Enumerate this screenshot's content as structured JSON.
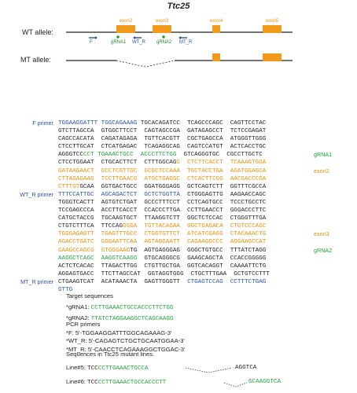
{
  "title": "Ttc25",
  "colors": {
    "exon": "#f19a1c",
    "primer": "#2a4fa8",
    "grna": "#1fa23a",
    "text": "#222222"
  },
  "diagram": {
    "wt_label": "WT allele:",
    "mt_label": "MT allele:",
    "exons": [
      "exon2",
      "exon3",
      "exon4",
      "exon5"
    ],
    "primers": [
      "F",
      "WT_R",
      "MT_R"
    ],
    "grnas": [
      "gRNA1",
      "gRNA2"
    ]
  },
  "sequence_rows": [
    {
      "label": "F primer",
      "label_color": "b",
      "segments": [
        [
          "TGGAAGGATTT TGGCAGAAAG",
          "b"
        ],
        [
          " TGCACAGATCC  TCAGCCCAGC  CAGTTCCTAC",
          "k"
        ]
      ]
    },
    {
      "label": "",
      "segments": [
        [
          "GTCTTAGCCA  GTGGCTTCCT  CAGTAGCCGA  GATAGAGCCT  TCTCCGAGAT",
          "k"
        ]
      ]
    },
    {
      "label": "",
      "segments": [
        [
          "CAGCCACATA  CAGATAGAGA  TGTTCACGTT  CGCTGAGCCA  ATGGGTTGGG",
          "k"
        ]
      ]
    },
    {
      "label": "",
      "segments": [
        [
          "CTCCTTGCAT  CTCATGAGAC  TCAGAGGCAG  CAGTCCATGT  ACTCACCTGC",
          "k"
        ]
      ]
    },
    {
      "label": "",
      "side": "gRNA1",
      "side_color": "g",
      "segments": [
        [
          "AGGGTCC",
          "k"
        ],
        [
          "CCT TGAAACTGCC  ACCCTTCTGG",
          "g"
        ],
        [
          "  GTCAGGGTGC  CGCCTTGCTC",
          "k"
        ]
      ]
    },
    {
      "label": "",
      "segments": [
        [
          "CTCCTGGAAT  CTGCACTTCT  CTTTGGCAG",
          "k"
        ],
        [
          "G  CTCTTCACCT  TCAAAGTGGA",
          "o"
        ]
      ]
    },
    {
      "label": "",
      "side": "exon2",
      "side_color": "o",
      "segments": [
        [
          "GATAAGAACT  GCCTCGTTGC  GCGCTCCAAA  TGCTACCTGA  AGATGGAGCA",
          "o"
        ]
      ]
    },
    {
      "label": "",
      "segments": [
        [
          "CTTAGAGAAG  TCCTTGAACG  ATGCTGAGGC  CTCACTTCGG  AACGACCCGA",
          "o"
        ]
      ]
    },
    {
      "label": "",
      "segments": [
        [
          "CTTTGT",
          "o"
        ],
        [
          "GCAA  GGTGACTGCC  GGATGGGAGG  GCTCAGTCTT  GGTTTCGCCA",
          "k"
        ]
      ]
    },
    {
      "label": "WT_R primer",
      "label_color": "b",
      "segments": [
        [
          "TTTCCATTGC  AGCAGACTCT  GCTCTGGTTA",
          "b"
        ],
        [
          "  CTGGGAGTTG  AAGAACCAGC",
          "k"
        ]
      ]
    },
    {
      "label": "",
      "segments": [
        [
          "TGGGTCACTT  AGTGTCTGAT  GCCCTTTCCT  CCTCAGTGCC  TCCCTGCCTC",
          "k"
        ]
      ]
    },
    {
      "label": "",
      "segments": [
        [
          "TCCGAGCCCA  ACCTTCACCT  CCACCCTTGA  CCTTGAACCT  GGGACCCTTC",
          "k"
        ]
      ]
    },
    {
      "label": "",
      "segments": [
        [
          "CATGCTACCG  TGCAAGTGCT  TTAAGGTCTT  GGCTCTCCAC  CTGGGTTTGA",
          "k"
        ]
      ]
    },
    {
      "label": "",
      "segments": [
        [
          "CTGTCTTTCA  TTCCAG",
          "k"
        ],
        [
          "GGGA  TGTTACAGAA  GGCTGAGACA  CTGTCCCAGC",
          "o"
        ]
      ]
    },
    {
      "label": "",
      "side": "exon3",
      "side_color": "o",
      "segments": [
        [
          "TGGGAGAGTT  TGAGTTTGCC  CTGGTGTTCT  ATCATCGAGG  CTACAAACTG",
          "o"
        ]
      ]
    },
    {
      "label": "",
      "segments": [
        [
          "AGACCTGATC  GGGAATTCAA  AGTAGGAATT  CAGAAGGCCC  AGGAAGCCAT",
          "o"
        ]
      ]
    },
    {
      "label": "",
      "side": "gRNA2",
      "side_color": "g",
      "segments": [
        [
          "GAAGCCAGCG  GTGGGAAG",
          "o"
        ],
        [
          "TG  AGTGAGGGAG  GGGCTGTGCC  TTTATCTAGG",
          "k"
        ]
      ]
    },
    {
      "label": "",
      "segments": [
        [
          "AAGGCTCAGC  AAGGTCAAGG",
          "g"
        ],
        [
          "  GTGCAGGGCG  GAAGCAGCTA  CCACCGGGGG",
          "k"
        ]
      ]
    },
    {
      "label": "",
      "segments": [
        [
          "ACTCTCACAC  TTAGACTTGG  CTGTTGCTGA  GGTCACAGGT  CAAAATTCTG",
          "k"
        ]
      ]
    },
    {
      "label": "",
      "segments": [
        [
          "AGGAGTGACC  TTCTTAGCCAT  GGTAGGTGGG  CTGCTTTGAA  GCTGTCCTTT",
          "k"
        ]
      ]
    },
    {
      "label": "MT_R primer",
      "label_color": "b",
      "segments": [
        [
          "CTGAAGTCAT  ACATAAACTA  GAGTTGGGTT",
          "k"
        ],
        [
          "  CTGAGTCCAG  CCTTTCTGAG",
          "b"
        ]
      ]
    },
    {
      "label": "",
      "segments": [
        [
          "GTTG",
          "b"
        ]
      ]
    }
  ],
  "targets": {
    "heading": "Target sequences",
    "items": [
      {
        "name": "*gRNA1:",
        "seq": "CCTTGAAACTGCCACCCTTCTGG"
      },
      {
        "name": "*gRNA2:",
        "seq": "TTATCTAGGAAGGCTCAGCAAGG"
      }
    ]
  },
  "pcr": {
    "heading": "PCR primers",
    "items": [
      "*F: 5'-TGGAAGGATTTGGCAGAAAG-3'",
      "*WT_R: 5'-CAGAGTCTGCTGCAATGGAA-3'",
      "*MT_R: 5'-CAACCTCAGAAAGGCTGGAC-3'"
    ]
  },
  "mutants": {
    "heading": "Sequences in Ttc25 mutant lines.",
    "lines": [
      {
        "name": "Line#5:",
        "left_k": "TCC",
        "left_g": "CCTTGAAACTGCCA",
        "right": "AGGTCA"
      },
      {
        "name": "Line#6:",
        "left_k": "TCC",
        "left_g": "CCTTGAAACTGCCACCCTT",
        "right": "GCAAGGTCA"
      }
    ]
  }
}
